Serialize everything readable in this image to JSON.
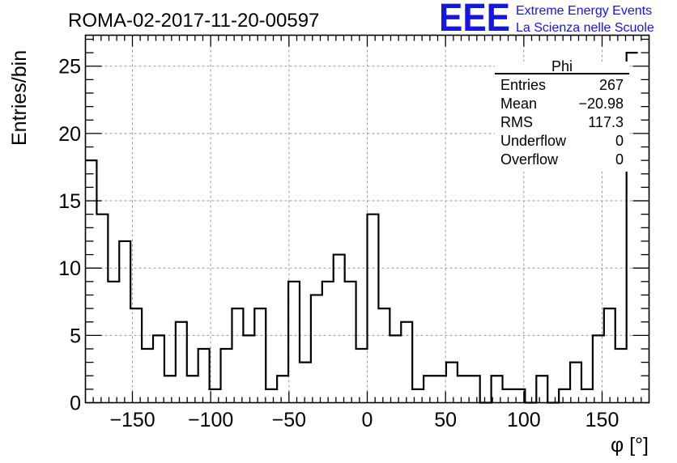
{
  "chart_data": {
    "type": "bar",
    "title": "ROMA-02-2017-11-20-00597",
    "xlabel": "φ [°]",
    "ylabel": "Entries/bin",
    "xlim": [
      -180,
      180
    ],
    "ylim": [
      0,
      27.3
    ],
    "grid": true,
    "bin_width": 7.2,
    "bin_edges_start": -180,
    "values": [
      18,
      14,
      9,
      12,
      7,
      4,
      5,
      2,
      6,
      2,
      4,
      1,
      4,
      7,
      5,
      7,
      1,
      2,
      9,
      3,
      8,
      9,
      11,
      9,
      4,
      14,
      7,
      5,
      6,
      1,
      2,
      2,
      3,
      2,
      2,
      0,
      2,
      1,
      1,
      0,
      2,
      0,
      1,
      3,
      1,
      5,
      7,
      4,
      26
    ],
    "x_ticks": [
      -150,
      -100,
      -50,
      0,
      50,
      100,
      150
    ],
    "x_tick_labels": [
      "−150",
      "−100",
      "−50",
      "0",
      "50",
      "100",
      "150"
    ],
    "y_ticks": [
      0,
      5,
      10,
      15,
      20,
      25
    ],
    "y_tick_labels": [
      "0",
      "5",
      "10",
      "15",
      "20",
      "25"
    ],
    "stats_box": {
      "title": "Phi",
      "rows": [
        {
          "label": "Entries",
          "value": "267"
        },
        {
          "label": "Mean",
          "value": "−20.98"
        },
        {
          "label": "RMS",
          "value": "117.3"
        },
        {
          "label": "Underflow",
          "value": "0"
        },
        {
          "label": "Overflow",
          "value": "0"
        }
      ]
    }
  },
  "logo": {
    "letters": "EEE",
    "line1": "Extreme Energy Events",
    "line2": "La Scienza nelle Scuole",
    "color": "#1515e6"
  },
  "colors": {
    "hist": "#000000",
    "grid": "#9a9a9a"
  }
}
